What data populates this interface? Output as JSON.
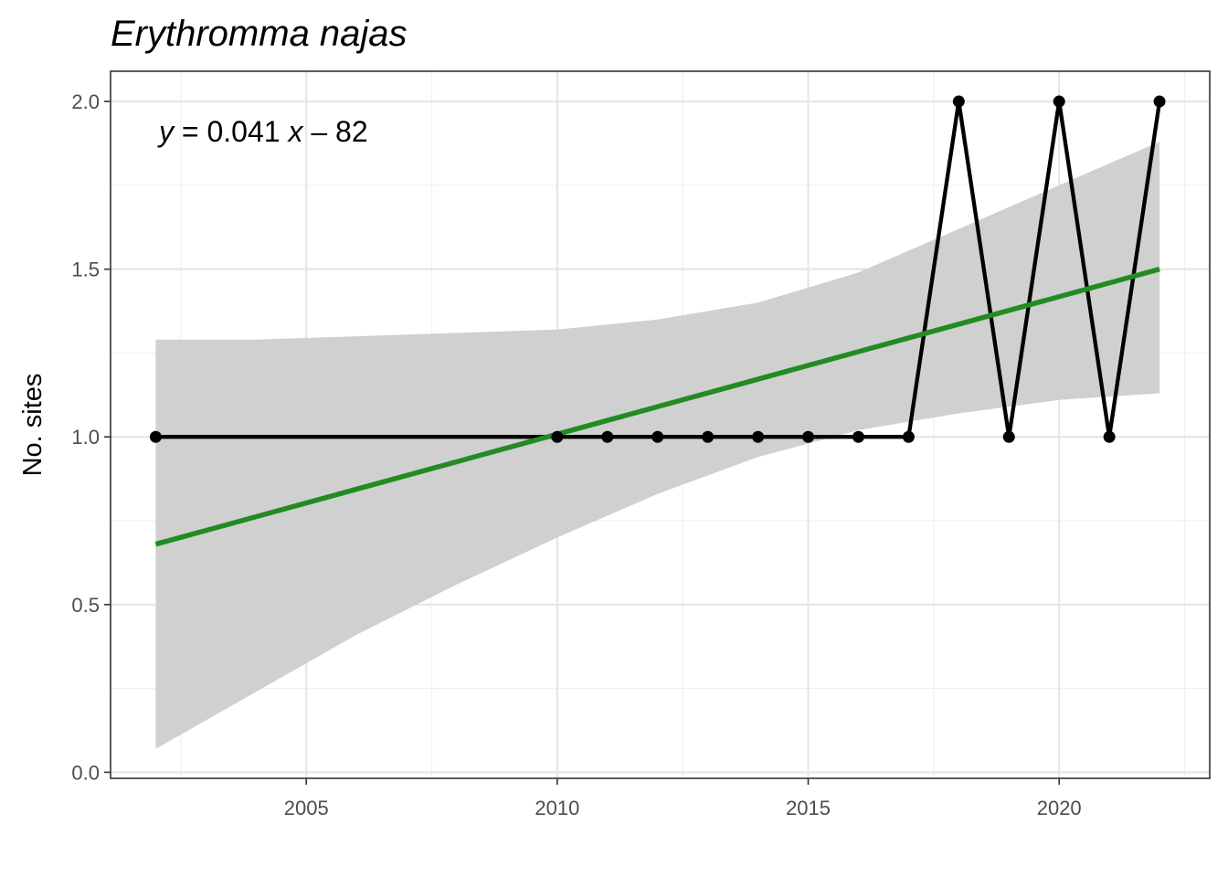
{
  "chart_data": {
    "type": "line",
    "title": "Erythromma najas",
    "xlabel": "",
    "ylabel": "No. sites",
    "xlim": [
      2001.1,
      2023.0
    ],
    "ylim": [
      -0.018,
      2.09
    ],
    "x_ticks": [
      2005,
      2010,
      2015,
      2020
    ],
    "x_tick_labels": [
      "2005",
      "2010",
      "2015",
      "2020"
    ],
    "y_ticks": [
      0.0,
      0.5,
      1.0,
      1.5,
      2.0
    ],
    "y_tick_labels": [
      "0.0",
      "0.5",
      "1.0",
      "1.5",
      "2.0"
    ],
    "grid": true,
    "annotation": {
      "y_var": "y",
      "equals": " = 0.041 ",
      "x_var": "x",
      "rest": " – 82"
    },
    "series": [
      {
        "type": "line+points",
        "color": "#000000",
        "x": [
          2002,
          2010,
          2011,
          2012,
          2013,
          2014,
          2015,
          2016,
          2017,
          2018,
          2019,
          2020,
          2021,
          2022
        ],
        "y": [
          1,
          1,
          1,
          1,
          1,
          1,
          1,
          1,
          1,
          2,
          1,
          2,
          1,
          2
        ]
      }
    ],
    "trend": {
      "type": "linear-fit",
      "color": "#228B22",
      "x": [
        2002,
        2022
      ],
      "y": [
        0.68,
        1.5
      ]
    },
    "confidence_band": {
      "color": "#d0d0d0",
      "x": [
        2002,
        2004,
        2006,
        2008,
        2010,
        2012,
        2014,
        2016,
        2018,
        2020,
        2022
      ],
      "lower": [
        0.07,
        0.24,
        0.41,
        0.56,
        0.7,
        0.83,
        0.94,
        1.02,
        1.07,
        1.11,
        1.13
      ],
      "upper": [
        1.29,
        1.29,
        1.3,
        1.31,
        1.32,
        1.35,
        1.4,
        1.49,
        1.62,
        1.75,
        1.88
      ]
    }
  }
}
